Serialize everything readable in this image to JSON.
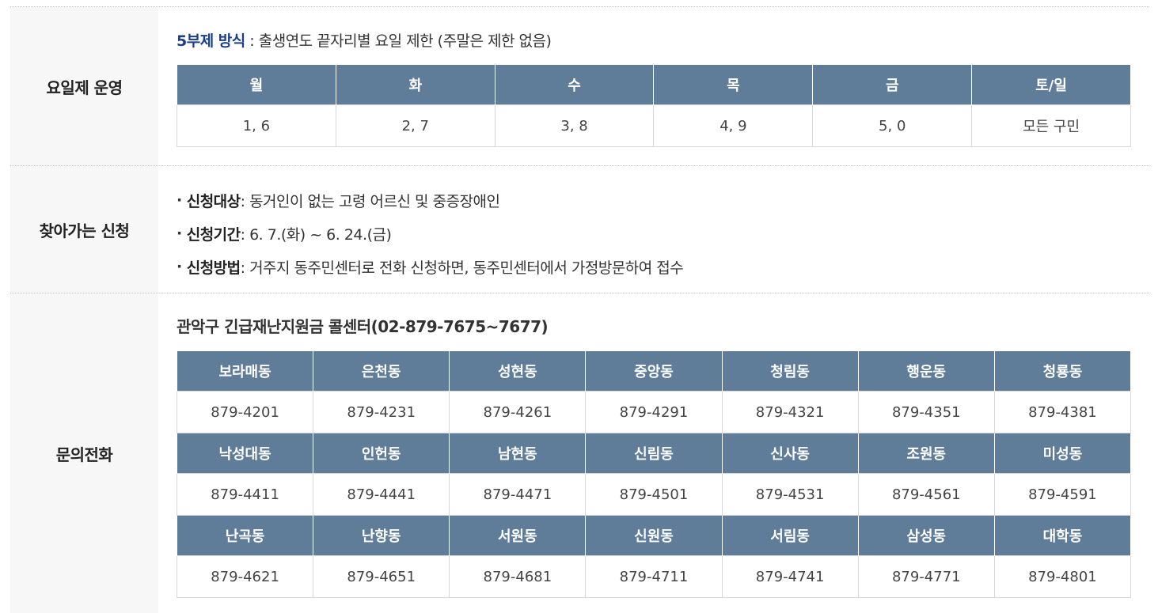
{
  "schedule": {
    "label": "요일제 운영",
    "desc_highlight": "5부제 방식",
    "desc_rest": " : 출생연도 끝자리별 요일 제한 (주말은 제한 없음)",
    "headers": [
      "월",
      "화",
      "수",
      "목",
      "금",
      "토/일"
    ],
    "values": [
      "1, 6",
      "2, 7",
      "3, 8",
      "4, 9",
      "5, 0",
      "모든 구민"
    ]
  },
  "visit": {
    "label": "찾아가는 신청",
    "items": [
      {
        "key": "신청대상",
        "text": " : 동거인이 없는 고령 어르신 및 중증장애인"
      },
      {
        "key": "신청기간",
        "text": " : 6. 7.(화) ~ 6. 24.(금)"
      },
      {
        "key": "신청방법",
        "text": " : 거주지 동주민센터로 전화 신청하면, 동주민센터에서 가정방문하여 접수"
      }
    ]
  },
  "contact": {
    "label": "문의전화",
    "title": "관악구 긴급재난지원금 콜센터(02-879-7675~7677)",
    "groups": [
      {
        "names": [
          "보라매동",
          "은천동",
          "성현동",
          "중앙동",
          "청림동",
          "행운동",
          "청룡동"
        ],
        "phones": [
          "879-4201",
          "879-4231",
          "879-4261",
          "879-4291",
          "879-4321",
          "879-4351",
          "879-4381"
        ]
      },
      {
        "names": [
          "낙성대동",
          "인헌동",
          "남현동",
          "신림동",
          "신사동",
          "조원동",
          "미성동"
        ],
        "phones": [
          "879-4411",
          "879-4441",
          "879-4471",
          "879-4501",
          "879-4531",
          "879-4561",
          "879-4591"
        ]
      },
      {
        "names": [
          "난곡동",
          "난향동",
          "서원동",
          "신원동",
          "서림동",
          "삼성동",
          "대학동"
        ],
        "phones": [
          "879-4621",
          "879-4651",
          "879-4681",
          "879-4711",
          "879-4741",
          "879-4771",
          "879-4801"
        ]
      }
    ]
  }
}
